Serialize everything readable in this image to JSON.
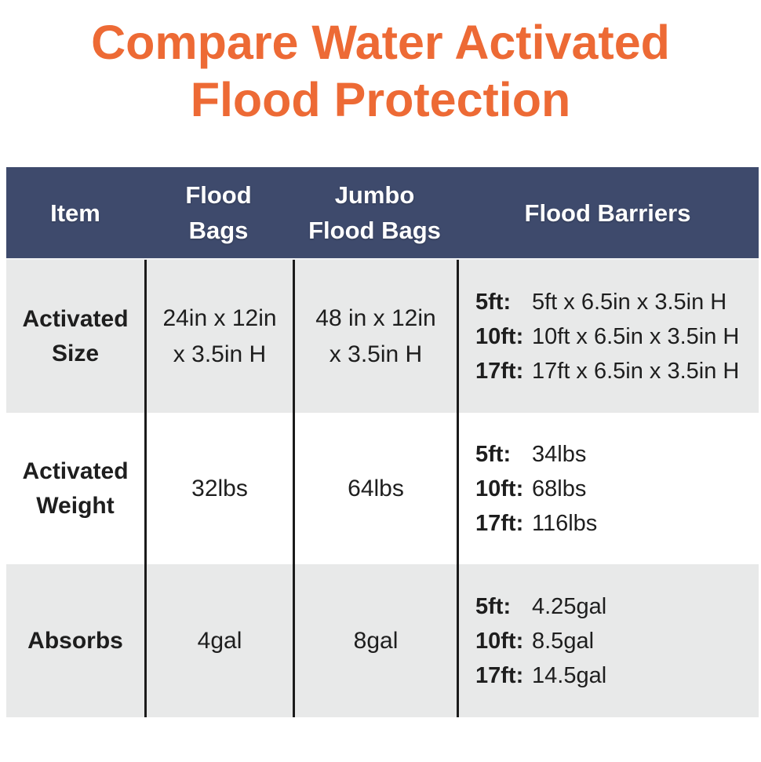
{
  "title": {
    "line1": "Compare Water Activated",
    "line2": "Flood Protection",
    "full": "Compare Water Activated Flood Protection"
  },
  "colors": {
    "title_orange": "#ED6A35",
    "header_navy": "#3E4A6C",
    "header_text": "#FFFFFF",
    "row_gray": "#E8E9E9",
    "row_white": "#FFFFFF",
    "divider_black": "#1B1B1B",
    "body_text": "#1E1E1E"
  },
  "table": {
    "header_lines": [
      [
        "Item"
      ],
      [
        "Flood",
        "Bags"
      ],
      [
        "Jumbo",
        "Flood Bags"
      ],
      [
        "Flood Barriers"
      ]
    ],
    "rows": [
      {
        "item_lines": [
          "Activated",
          "Size"
        ],
        "flood_bags_lines": [
          "24in x 12in",
          "x 3.5in H"
        ],
        "jumbo_lines": [
          "48 in x 12in",
          "x 3.5in H"
        ],
        "barriers": [
          {
            "label": "5ft:",
            "value": "5ft x 6.5in x 3.5in H"
          },
          {
            "label": "10ft:",
            "value": "10ft x 6.5in x 3.5in H"
          },
          {
            "label": "17ft:",
            "value": "17ft x 6.5in x 3.5in H"
          }
        ]
      },
      {
        "item_lines": [
          "Activated",
          "Weight"
        ],
        "flood_bags_lines": [
          "32lbs"
        ],
        "jumbo_lines": [
          "64lbs"
        ],
        "barriers": [
          {
            "label": "5ft:",
            "value": "34lbs"
          },
          {
            "label": "10ft:",
            "value": "68lbs"
          },
          {
            "label": "17ft:",
            "value": "116lbs"
          }
        ]
      },
      {
        "item_lines": [
          "Absorbs"
        ],
        "flood_bags_lines": [
          "4gal"
        ],
        "jumbo_lines": [
          "8gal"
        ],
        "barriers": [
          {
            "label": "5ft:",
            "value": "4.25gal"
          },
          {
            "label": "10ft:",
            "value": "8.5gal"
          },
          {
            "label": "17ft:",
            "value": "14.5gal"
          }
        ]
      }
    ]
  },
  "chart_data": {
    "type": "table",
    "title": "Compare Water Activated Flood Protection",
    "columns": [
      "Item",
      "Flood Bags",
      "Jumbo Flood Bags",
      "Flood Barriers"
    ],
    "rows": [
      [
        "Activated Size",
        "24in x 12in x 3.5in H",
        "48 in x 12in x 3.5in H",
        "5ft: 5ft x 6.5in x 3.5in H | 10ft: 10ft x 6.5in x 3.5in H | 17ft: 17ft x 6.5in x 3.5in H"
      ],
      [
        "Activated Weight",
        "32lbs",
        "64lbs",
        "5ft: 34lbs | 10ft: 68lbs | 17ft: 116lbs"
      ],
      [
        "Absorbs",
        "4gal",
        "8gal",
        "5ft: 4.25gal | 10ft: 8.5gal | 17ft: 14.5gal"
      ]
    ],
    "layout": {
      "header_background": "#3E4A6C",
      "alternating_row_colors": [
        "#E8E9E9",
        "#FFFFFF",
        "#E8E9E9"
      ],
      "column_dividers": true,
      "outer_border": false
    }
  }
}
